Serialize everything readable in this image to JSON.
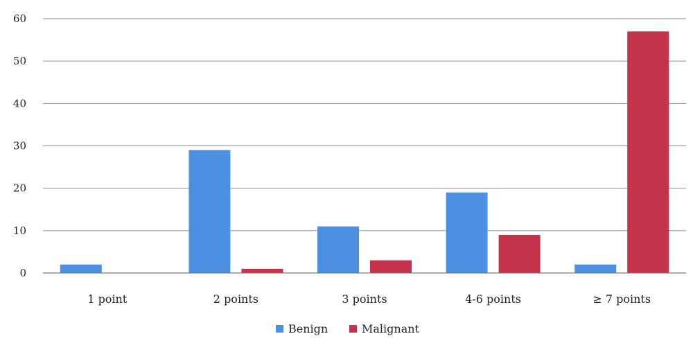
{
  "chart_data": {
    "type": "bar",
    "categories": [
      "1 point",
      "2 points",
      "3 points",
      "4-6 points",
      "≥ 7 points"
    ],
    "series": [
      {
        "name": "Benign",
        "values": [
          2,
          29,
          11,
          19,
          2
        ],
        "color": "#4a8fe0"
      },
      {
        "name": "Malignant",
        "values": [
          0,
          1,
          3,
          9,
          57
        ],
        "color": "#c4334a"
      }
    ],
    "title": "",
    "xlabel": "",
    "ylabel": "",
    "ylim": [
      0,
      60
    ],
    "yticks": [
      0,
      10,
      20,
      30,
      40,
      50,
      60
    ],
    "grid": true,
    "legend": "bottom-center"
  }
}
